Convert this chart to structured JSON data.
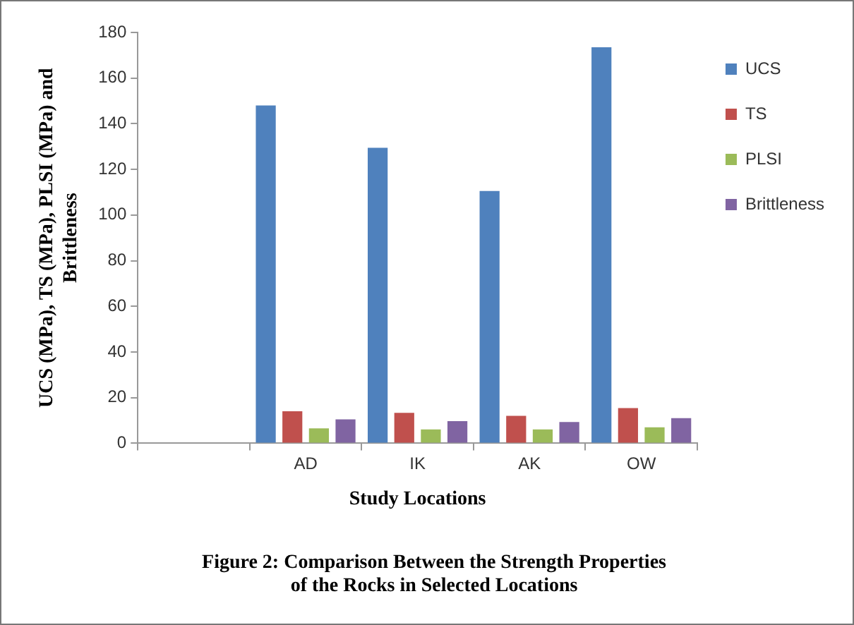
{
  "chart_data": {
    "type": "bar",
    "title": "Figure 2: Comparison Between the Strength Properties of the Rocks in Selected Locations",
    "xlabel": "Study Locations",
    "ylabel": "UCS (MPa), TS (MPa), PLSI (MPa) and Brittleness",
    "categories": [
      null,
      "AD",
      "IK",
      "AK",
      "OW"
    ],
    "series": [
      {
        "name": "UCS",
        "color": "#4f81bd",
        "values": [
          null,
          148,
          129.5,
          110.5,
          173.5
        ]
      },
      {
        "name": "TS",
        "color": "#c0504d",
        "values": [
          null,
          14,
          13.3,
          12,
          15.4
        ]
      },
      {
        "name": "PLSI",
        "color": "#9bbb59",
        "values": [
          null,
          6.5,
          6.1,
          6.1,
          7
        ]
      },
      {
        "name": "Brittleness",
        "color": "#8064a2",
        "values": [
          null,
          10.5,
          9.7,
          9.3,
          11
        ]
      }
    ],
    "ylim": [
      0,
      180
    ],
    "yticks": [
      0,
      20,
      40,
      60,
      80,
      100,
      120,
      140,
      160,
      180
    ],
    "grid": false,
    "legend": "right"
  }
}
